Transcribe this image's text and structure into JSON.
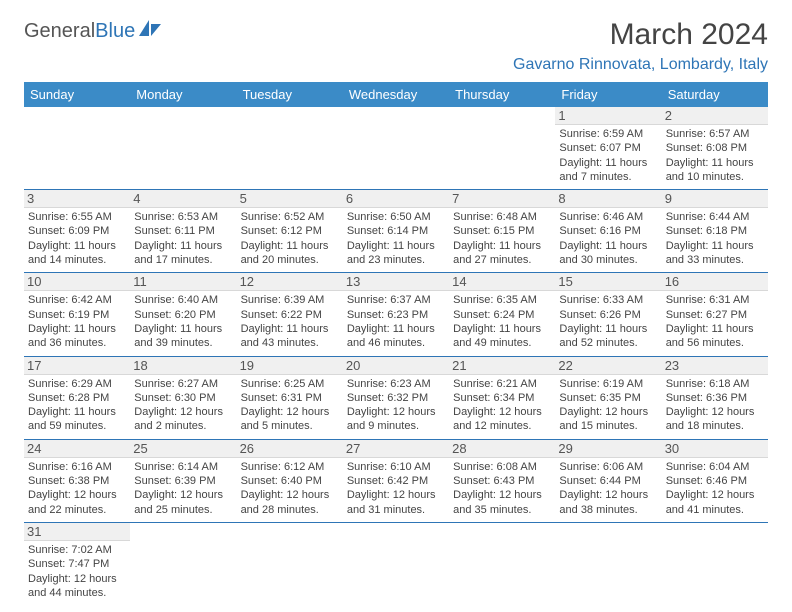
{
  "logo": {
    "text1": "General",
    "text2": "Blue"
  },
  "title": "March 2024",
  "location": "Gavarno Rinnovata, Lombardy, Italy",
  "colors": {
    "header_bg": "#3b8bc7",
    "accent": "#2e75b6",
    "row_rule": "#2e75b6",
    "daynum_bg": "#f0f0f0",
    "text": "#444444"
  },
  "weekdays": [
    "Sunday",
    "Monday",
    "Tuesday",
    "Wednesday",
    "Thursday",
    "Friday",
    "Saturday"
  ],
  "weeks": [
    [
      null,
      null,
      null,
      null,
      null,
      {
        "n": "1",
        "sr": "6:59 AM",
        "ss": "6:07 PM",
        "dl": "11 hours and 7 minutes."
      },
      {
        "n": "2",
        "sr": "6:57 AM",
        "ss": "6:08 PM",
        "dl": "11 hours and 10 minutes."
      }
    ],
    [
      {
        "n": "3",
        "sr": "6:55 AM",
        "ss": "6:09 PM",
        "dl": "11 hours and 14 minutes."
      },
      {
        "n": "4",
        "sr": "6:53 AM",
        "ss": "6:11 PM",
        "dl": "11 hours and 17 minutes."
      },
      {
        "n": "5",
        "sr": "6:52 AM",
        "ss": "6:12 PM",
        "dl": "11 hours and 20 minutes."
      },
      {
        "n": "6",
        "sr": "6:50 AM",
        "ss": "6:14 PM",
        "dl": "11 hours and 23 minutes."
      },
      {
        "n": "7",
        "sr": "6:48 AM",
        "ss": "6:15 PM",
        "dl": "11 hours and 27 minutes."
      },
      {
        "n": "8",
        "sr": "6:46 AM",
        "ss": "6:16 PM",
        "dl": "11 hours and 30 minutes."
      },
      {
        "n": "9",
        "sr": "6:44 AM",
        "ss": "6:18 PM",
        "dl": "11 hours and 33 minutes."
      }
    ],
    [
      {
        "n": "10",
        "sr": "6:42 AM",
        "ss": "6:19 PM",
        "dl": "11 hours and 36 minutes."
      },
      {
        "n": "11",
        "sr": "6:40 AM",
        "ss": "6:20 PM",
        "dl": "11 hours and 39 minutes."
      },
      {
        "n": "12",
        "sr": "6:39 AM",
        "ss": "6:22 PM",
        "dl": "11 hours and 43 minutes."
      },
      {
        "n": "13",
        "sr": "6:37 AM",
        "ss": "6:23 PM",
        "dl": "11 hours and 46 minutes."
      },
      {
        "n": "14",
        "sr": "6:35 AM",
        "ss": "6:24 PM",
        "dl": "11 hours and 49 minutes."
      },
      {
        "n": "15",
        "sr": "6:33 AM",
        "ss": "6:26 PM",
        "dl": "11 hours and 52 minutes."
      },
      {
        "n": "16",
        "sr": "6:31 AM",
        "ss": "6:27 PM",
        "dl": "11 hours and 56 minutes."
      }
    ],
    [
      {
        "n": "17",
        "sr": "6:29 AM",
        "ss": "6:28 PM",
        "dl": "11 hours and 59 minutes."
      },
      {
        "n": "18",
        "sr": "6:27 AM",
        "ss": "6:30 PM",
        "dl": "12 hours and 2 minutes."
      },
      {
        "n": "19",
        "sr": "6:25 AM",
        "ss": "6:31 PM",
        "dl": "12 hours and 5 minutes."
      },
      {
        "n": "20",
        "sr": "6:23 AM",
        "ss": "6:32 PM",
        "dl": "12 hours and 9 minutes."
      },
      {
        "n": "21",
        "sr": "6:21 AM",
        "ss": "6:34 PM",
        "dl": "12 hours and 12 minutes."
      },
      {
        "n": "22",
        "sr": "6:19 AM",
        "ss": "6:35 PM",
        "dl": "12 hours and 15 minutes."
      },
      {
        "n": "23",
        "sr": "6:18 AM",
        "ss": "6:36 PM",
        "dl": "12 hours and 18 minutes."
      }
    ],
    [
      {
        "n": "24",
        "sr": "6:16 AM",
        "ss": "6:38 PM",
        "dl": "12 hours and 22 minutes."
      },
      {
        "n": "25",
        "sr": "6:14 AM",
        "ss": "6:39 PM",
        "dl": "12 hours and 25 minutes."
      },
      {
        "n": "26",
        "sr": "6:12 AM",
        "ss": "6:40 PM",
        "dl": "12 hours and 28 minutes."
      },
      {
        "n": "27",
        "sr": "6:10 AM",
        "ss": "6:42 PM",
        "dl": "12 hours and 31 minutes."
      },
      {
        "n": "28",
        "sr": "6:08 AM",
        "ss": "6:43 PM",
        "dl": "12 hours and 35 minutes."
      },
      {
        "n": "29",
        "sr": "6:06 AM",
        "ss": "6:44 PM",
        "dl": "12 hours and 38 minutes."
      },
      {
        "n": "30",
        "sr": "6:04 AM",
        "ss": "6:46 PM",
        "dl": "12 hours and 41 minutes."
      }
    ],
    [
      {
        "n": "31",
        "sr": "7:02 AM",
        "ss": "7:47 PM",
        "dl": "12 hours and 44 minutes."
      },
      null,
      null,
      null,
      null,
      null,
      null
    ]
  ],
  "labels": {
    "sunrise": "Sunrise:",
    "sunset": "Sunset:",
    "daylight": "Daylight:"
  }
}
